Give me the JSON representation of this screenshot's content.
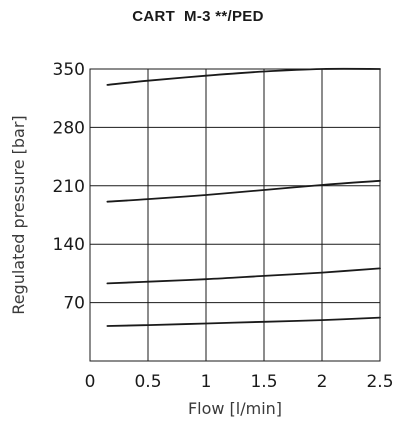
{
  "chart_data": {
    "type": "line",
    "title": "CART  M-3 **/PED",
    "xlabel": "Flow [l/min]",
    "ylabel": "Regulated pressure [bar]",
    "xlim": [
      0,
      2.5
    ],
    "ylim": [
      0,
      350
    ],
    "xticks": [
      0,
      0.5,
      1,
      1.5,
      2,
      2.5
    ],
    "xtick_labels": [
      "0",
      "0.5",
      "1",
      "1.5",
      "2",
      "2.5"
    ],
    "yticks": [
      70,
      140,
      210,
      280,
      350
    ],
    "ytick_labels": [
      "70",
      "140",
      "210",
      "280",
      "350"
    ],
    "grid": true,
    "series": [
      {
        "x": [
          0.15,
          0.5,
          1.0,
          1.5,
          2.0,
          2.5
        ],
        "y": [
          331,
          336,
          342,
          347,
          350,
          350
        ]
      },
      {
        "x": [
          0.15,
          0.5,
          1.0,
          1.5,
          2.0,
          2.5
        ],
        "y": [
          191,
          194,
          199,
          205,
          211,
          216
        ]
      },
      {
        "x": [
          0.15,
          0.5,
          1.0,
          1.5,
          2.0,
          2.5
        ],
        "y": [
          93,
          95,
          98,
          102,
          106,
          111
        ]
      },
      {
        "x": [
          0.15,
          0.5,
          1.0,
          1.5,
          2.0,
          2.5
        ],
        "y": [
          42,
          43,
          45,
          47,
          49,
          52
        ]
      }
    ]
  }
}
